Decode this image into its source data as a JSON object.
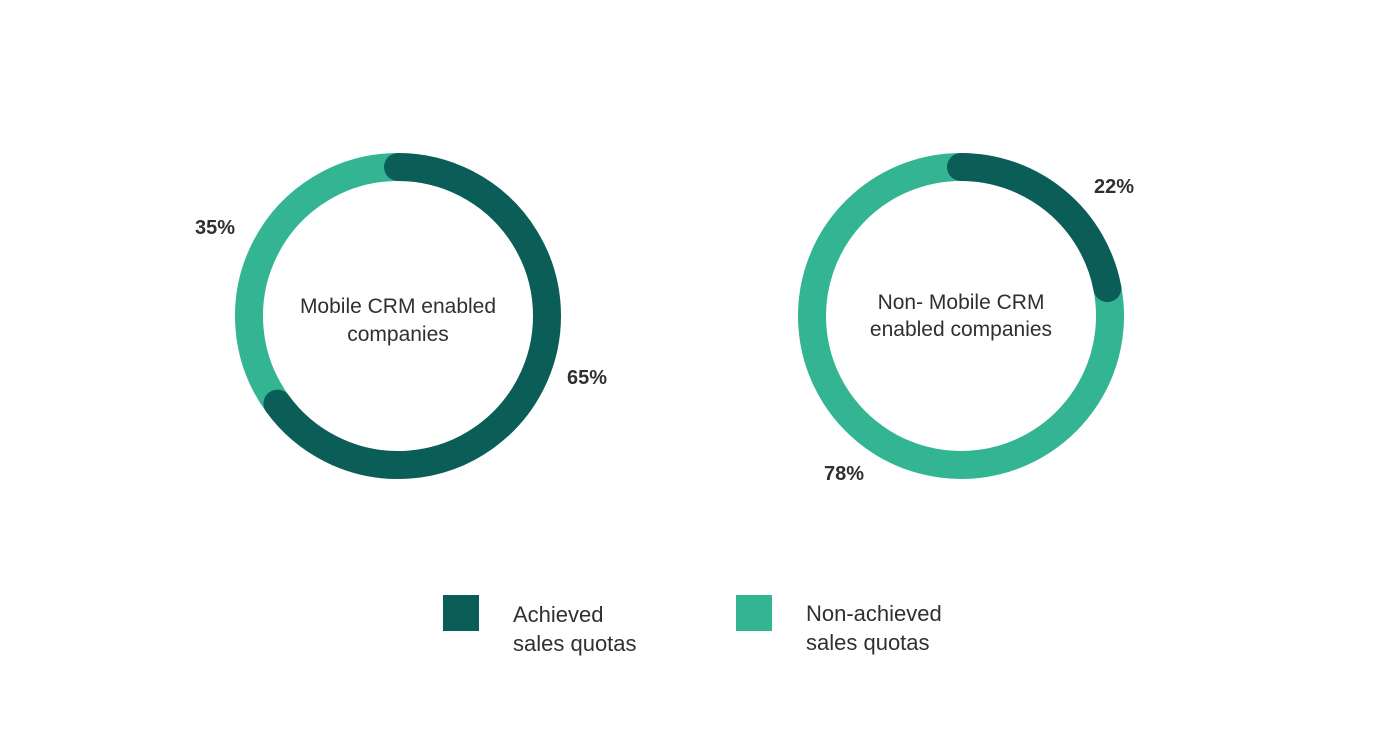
{
  "chart_data": [
    {
      "type": "pie",
      "variant": "donut",
      "center_label": [
        "Mobile CRM enabled",
        "companies"
      ],
      "slices": [
        {
          "category": "Achieved sales quotas",
          "value": 65,
          "label": "65%",
          "color": "#0b5d57"
        },
        {
          "category": "Non-achieved sales quotas",
          "value": 35,
          "label": "35%",
          "color": "#33b594"
        }
      ]
    },
    {
      "type": "pie",
      "variant": "donut",
      "center_label": [
        "Non- Mobile CRM",
        "enabled companies"
      ],
      "slices": [
        {
          "category": "Achieved sales quotas",
          "value": 22,
          "label": "22%",
          "color": "#0b5d57"
        },
        {
          "category": "Non-achieved sales quotas",
          "value": 78,
          "label": "78%",
          "color": "#33b594"
        }
      ]
    }
  ],
  "legend": {
    "placement": "bottom",
    "items": [
      {
        "lines": [
          "Achieved",
          "sales quotas"
        ],
        "color": "#0b5d57"
      },
      {
        "lines": [
          "Non-achieved",
          "sales quotas"
        ],
        "color": "#33b594"
      }
    ]
  }
}
